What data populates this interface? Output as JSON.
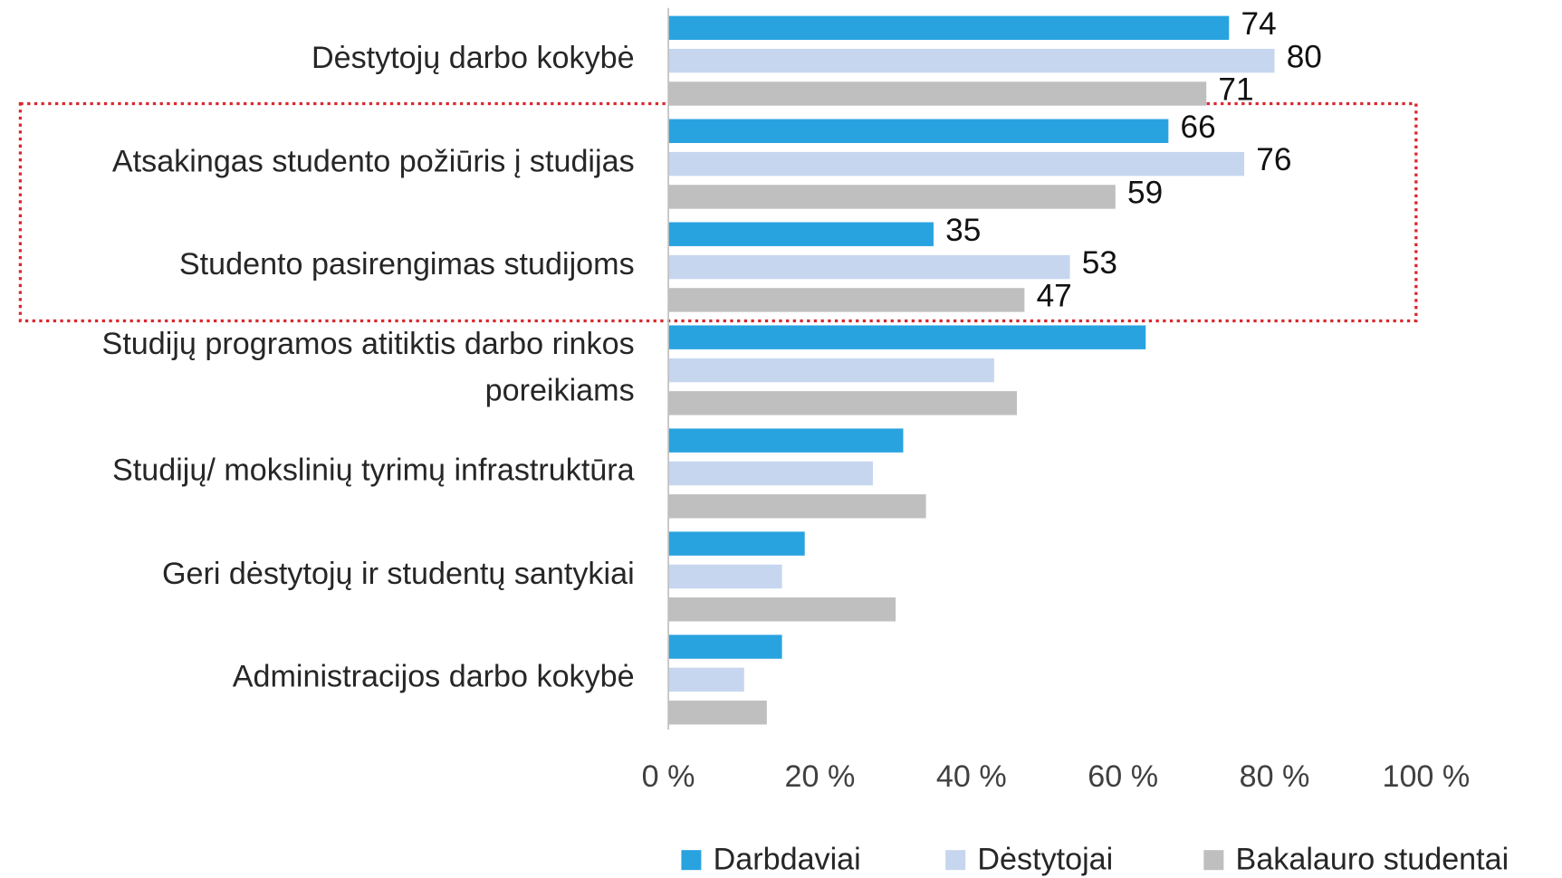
{
  "chart_data": {
    "type": "hbar",
    "categories": [
      "Dėstytojų darbo kokybė",
      "Atsakingas studento požiūris į studijas",
      "Studento pasirengimas studijoms",
      "Studijų programos atitiktis darbo rinkos poreikiams",
      "Studijų/ mokslinių tyrimų infrastruktūra",
      "Geri dėstytojų ir studentų santykiai",
      "Administracijos darbo kokybė"
    ],
    "series": [
      {
        "name": "Darbdaviai",
        "color": "#29a3e0",
        "values": [
          74,
          66,
          35,
          63,
          31,
          18,
          15
        ],
        "value_labels": [
          "74",
          "66",
          "35",
          null,
          null,
          null,
          null
        ]
      },
      {
        "name": "Dėstytojai",
        "color": "#c6d6ef",
        "values": [
          80,
          76,
          53,
          43,
          27,
          15,
          10
        ],
        "value_labels": [
          "80",
          "76",
          "53",
          null,
          null,
          null,
          null
        ]
      },
      {
        "name": "Bakalauro studentai",
        "color": "#bfbfbf",
        "values": [
          71,
          59,
          47,
          46,
          34,
          30,
          13
        ],
        "value_labels": [
          "71",
          "59",
          "47",
          null,
          null,
          null,
          null
        ]
      }
    ],
    "xlim": [
      0,
      100
    ],
    "xticks": [
      {
        "value": 0,
        "label": "0 %"
      },
      {
        "value": 20,
        "label": "20 %"
      },
      {
        "value": 40,
        "label": "40 %"
      },
      {
        "value": 60,
        "label": "60 %"
      },
      {
        "value": 80,
        "label": "80 %"
      },
      {
        "value": 100,
        "label": "100 %"
      }
    ],
    "legend": "bottom"
  }
}
